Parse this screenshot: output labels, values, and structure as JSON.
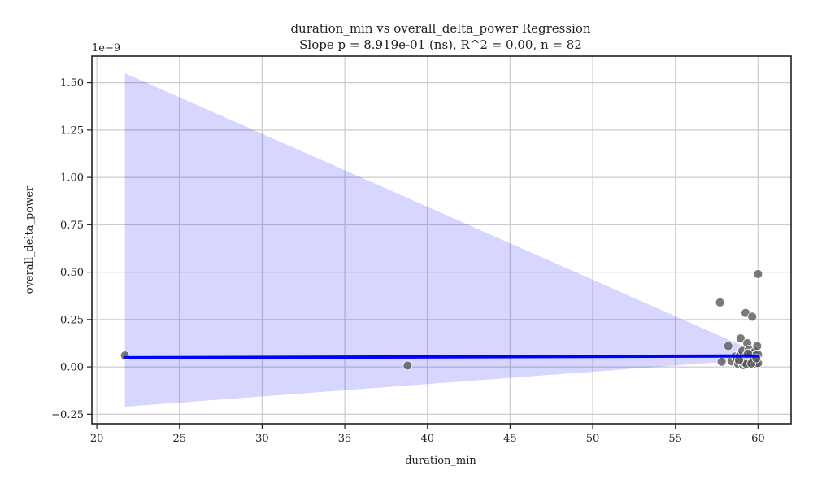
{
  "chart_data": {
    "type": "scatter",
    "title_line1": "duration_min vs overall_delta_power Regression",
    "title_line2": "Slope p = 8.919e-01 (ns), R^2 = 0.00, n = 82",
    "xlabel": "duration_min",
    "ylabel": "overall_delta_power",
    "y_offset_label": "1e−9",
    "xlim": [
      19.7,
      62.0
    ],
    "ylim": [
      -0.3,
      1.64
    ],
    "x_ticks": [
      20,
      25,
      30,
      35,
      40,
      45,
      50,
      55,
      60
    ],
    "x_tick_labels": [
      "20",
      "25",
      "30",
      "35",
      "40",
      "45",
      "50",
      "55",
      "60"
    ],
    "y_ticks": [
      -0.25,
      0.0,
      0.25,
      0.5,
      0.75,
      1.0,
      1.25,
      1.5
    ],
    "y_tick_labels": [
      "−0.25",
      "0.00",
      "0.25",
      "0.50",
      "0.75",
      "1.00",
      "1.25",
      "1.50"
    ],
    "grid": true,
    "regression_line": {
      "x": [
        21.7,
        60.0
      ],
      "y": [
        0.048,
        0.058
      ],
      "color": "#0000ff"
    },
    "confidence_band": {
      "x": [
        21.7,
        60.0
      ],
      "upper": [
        1.55,
        0.075
      ],
      "lower": [
        -0.21,
        0.04
      ],
      "color": "#0000ff",
      "opacity": 0.16
    },
    "point_color": "#555555",
    "points": [
      {
        "x": 21.7,
        "y": 0.06
      },
      {
        "x": 38.8,
        "y": 0.007
      },
      {
        "x": 57.7,
        "y": 0.34
      },
      {
        "x": 57.8,
        "y": 0.027
      },
      {
        "x": 58.2,
        "y": 0.11
      },
      {
        "x": 58.4,
        "y": 0.03
      },
      {
        "x": 58.6,
        "y": 0.055
      },
      {
        "x": 58.7,
        "y": 0.045
      },
      {
        "x": 58.8,
        "y": 0.015
      },
      {
        "x": 58.9,
        "y": 0.06
      },
      {
        "x": 58.95,
        "y": 0.15
      },
      {
        "x": 59.0,
        "y": 0.03
      },
      {
        "x": 59.05,
        "y": 0.085
      },
      {
        "x": 59.1,
        "y": 0.01
      },
      {
        "x": 59.15,
        "y": 0.045
      },
      {
        "x": 59.2,
        "y": 0.02
      },
      {
        "x": 59.25,
        "y": 0.285
      },
      {
        "x": 59.3,
        "y": 0.06
      },
      {
        "x": 59.35,
        "y": 0.125
      },
      {
        "x": 59.4,
        "y": 0.035
      },
      {
        "x": 59.45,
        "y": 0.09
      },
      {
        "x": 59.5,
        "y": 0.015
      },
      {
        "x": 59.55,
        "y": 0.05
      },
      {
        "x": 59.6,
        "y": 0.07
      },
      {
        "x": 59.65,
        "y": 0.265
      },
      {
        "x": 59.7,
        "y": 0.025
      },
      {
        "x": 59.75,
        "y": 0.04
      },
      {
        "x": 59.8,
        "y": 0.08
      },
      {
        "x": 59.85,
        "y": 0.06
      },
      {
        "x": 59.9,
        "y": 0.015
      },
      {
        "x": 59.95,
        "y": 0.11
      },
      {
        "x": 60.0,
        "y": 0.49
      },
      {
        "x": 60.0,
        "y": 0.065
      },
      {
        "x": 60.0,
        "y": 0.02
      },
      {
        "x": 59.1,
        "y": 0.025
      },
      {
        "x": 59.3,
        "y": 0.015
      },
      {
        "x": 59.6,
        "y": 0.018
      },
      {
        "x": 58.85,
        "y": 0.035
      },
      {
        "x": 59.4,
        "y": 0.07
      },
      {
        "x": 59.9,
        "y": 0.045
      }
    ]
  }
}
